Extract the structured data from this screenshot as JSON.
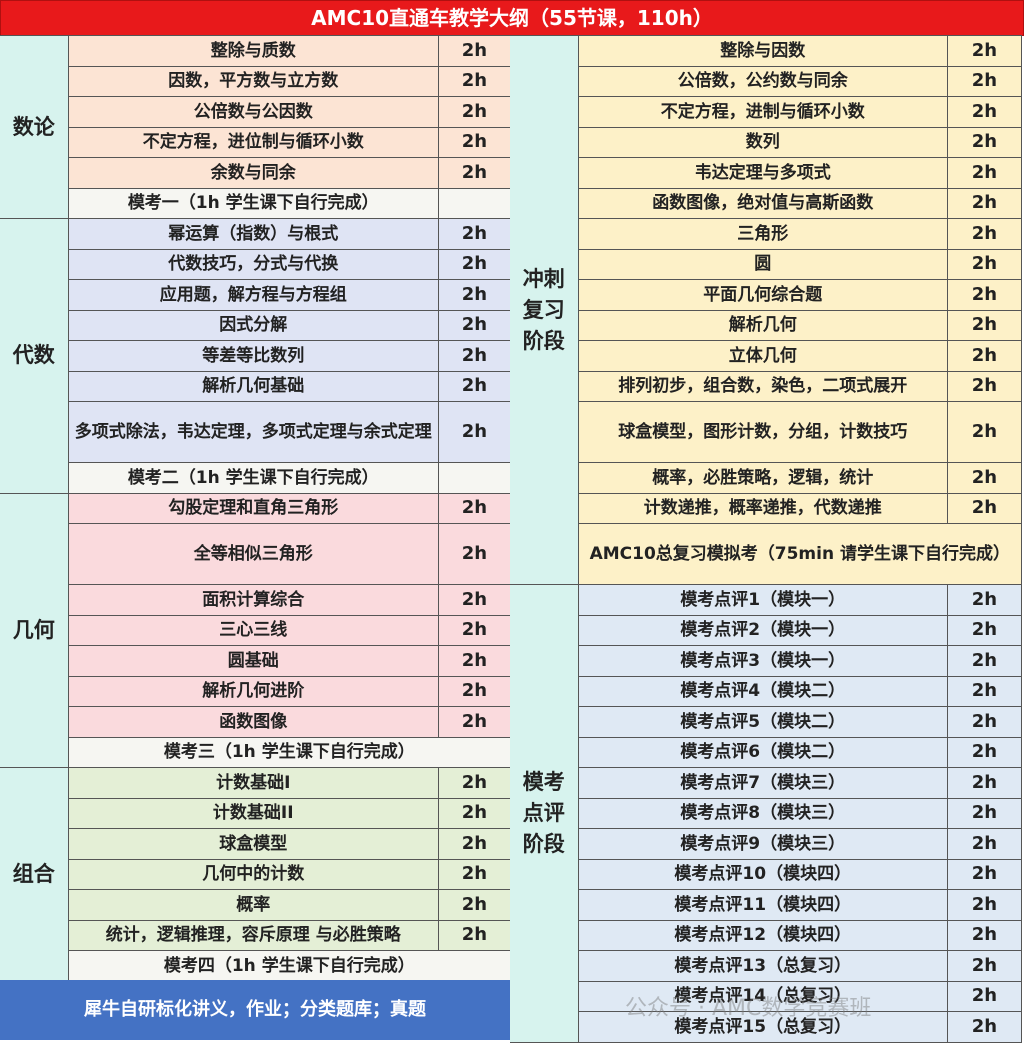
{
  "title": "AMC10直通车教学大纲（55节课，110h）",
  "left_sections": [
    {
      "name": "数论",
      "rows": [
        {
          "topic": "整除与质数",
          "hours": "2h"
        },
        {
          "topic": "因数，平方数与立方数",
          "hours": "2h"
        },
        {
          "topic": "公倍数与公因数",
          "hours": "2h"
        },
        {
          "topic": "不定方程，进位制与循环小数",
          "hours": "2h"
        },
        {
          "topic": "余数与同余",
          "hours": "2h"
        },
        {
          "topic": "模考一（1h 学生课下自行完成）",
          "hours": ""
        }
      ]
    },
    {
      "name": "代数",
      "rows": [
        {
          "topic": "幂运算（指数）与根式",
          "hours": "2h"
        },
        {
          "topic": "代数技巧，分式与代换",
          "hours": "2h"
        },
        {
          "topic": "应用题，解方程与方程组",
          "hours": "2h"
        },
        {
          "topic": "因式分解",
          "hours": "2h"
        },
        {
          "topic": "等差等比数列",
          "hours": "2h"
        },
        {
          "topic": "解析几何基础",
          "hours": "2h"
        },
        {
          "topic": "多项式除法，韦达定理，多项式定理与余式定理",
          "hours": "2h"
        },
        {
          "topic": "模考二（1h 学生课下自行完成）",
          "hours": ""
        }
      ]
    },
    {
      "name": "几何",
      "rows": [
        {
          "topic": "勾股定理和直角三角形",
          "hours": "2h"
        },
        {
          "topic": "全等相似三角形",
          "hours": "2h"
        },
        {
          "topic": "面积计算综合",
          "hours": "2h"
        },
        {
          "topic": "三心三线",
          "hours": "2h"
        },
        {
          "topic": "圆基础",
          "hours": "2h"
        },
        {
          "topic": "解析几何进阶",
          "hours": "2h"
        },
        {
          "topic": "函数图像",
          "hours": "2h"
        },
        {
          "topic": "模考三（1h 学生课下自行完成）"
        }
      ]
    },
    {
      "name": "组合",
      "rows": [
        {
          "topic": "计数基础I",
          "hours": "2h"
        },
        {
          "topic": "计数基础II",
          "hours": "2h"
        },
        {
          "topic": "球盒模型",
          "hours": "2h"
        },
        {
          "topic": "几何中的计数",
          "hours": "2h"
        },
        {
          "topic": "概率",
          "hours": "2h"
        },
        {
          "topic": "统计，逻辑推理，容斥原理 与必胜策略",
          "hours": "2h"
        },
        {
          "topic": "模考四（1h 学生课下自行完成）"
        }
      ]
    }
  ],
  "right_sections": [
    {
      "name": "冲刺复习阶段",
      "rows": [
        {
          "topic": "整除与因数",
          "hours": "2h"
        },
        {
          "topic": "公倍数，公约数与同余",
          "hours": "2h"
        },
        {
          "topic": "不定方程，进制与循环小数",
          "hours": "2h"
        },
        {
          "topic": "数列",
          "hours": "2h"
        },
        {
          "topic": "韦达定理与多项式",
          "hours": "2h"
        },
        {
          "topic": "函数图像，绝对值与高斯函数",
          "hours": "2h"
        },
        {
          "topic": "三角形",
          "hours": "2h"
        },
        {
          "topic": "圆",
          "hours": "2h"
        },
        {
          "topic": "平面几何综合题",
          "hours": "2h"
        },
        {
          "topic": "解析几何",
          "hours": "2h"
        },
        {
          "topic": "立体几何",
          "hours": "2h"
        },
        {
          "topic": "排列初步，组合数，染色，二项式展开",
          "hours": "2h"
        },
        {
          "topic": "球盒模型，图形计数，分组，计数技巧",
          "hours": "2h"
        },
        {
          "topic": "概率，必胜策略，逻辑，统计",
          "hours": "2h"
        },
        {
          "topic": "计数递推，概率递推，代数递推",
          "hours": "2h"
        },
        {
          "topic": "AMC10总复习模拟考（75min 请学生课下自行完成）"
        }
      ]
    },
    {
      "name": "模考点评阶段",
      "rows": [
        {
          "topic": "模考点评1（模块一）",
          "hours": "2h"
        },
        {
          "topic": "模考点评2（模块一）",
          "hours": "2h"
        },
        {
          "topic": "模考点评3（模块一）",
          "hours": "2h"
        },
        {
          "topic": "模考点评4（模块二）",
          "hours": "2h"
        },
        {
          "topic": "模考点评5（模块二）",
          "hours": "2h"
        },
        {
          "topic": "模考点评6（模块二）",
          "hours": "2h"
        },
        {
          "topic": "模考点评7（模块三）",
          "hours": "2h"
        },
        {
          "topic": "模考点评8（模块三）",
          "hours": "2h"
        },
        {
          "topic": "模考点评9（模块三）",
          "hours": "2h"
        },
        {
          "topic": "模考点评10（模块四）",
          "hours": "2h"
        },
        {
          "topic": "模考点评11（模块四）",
          "hours": "2h"
        },
        {
          "topic": "模考点评12（模块四）",
          "hours": "2h"
        },
        {
          "topic": "模考点评13（总复习）",
          "hours": "2h"
        },
        {
          "topic": "模考点评14（总复习）",
          "hours": "2h"
        },
        {
          "topic": "模考点评15（总复习）",
          "hours": "2h"
        }
      ]
    }
  ],
  "bottom_note": "犀牛自研标化讲义，作业；分类题库；真题",
  "watermark": "公众号 · AMC数学竞赛班",
  "colors": {
    "title": "#e8191b",
    "category": "#d7f3ee",
    "number_theory": "#fce4d4",
    "algebra": "#dfe4f4",
    "geometry": "#fadadd",
    "combinatorics": "#e4efd6",
    "mock": "#f6f6f2",
    "sprint": "#fdf1c8",
    "review": "#dfe9f4",
    "bottom": "#4472c4"
  }
}
